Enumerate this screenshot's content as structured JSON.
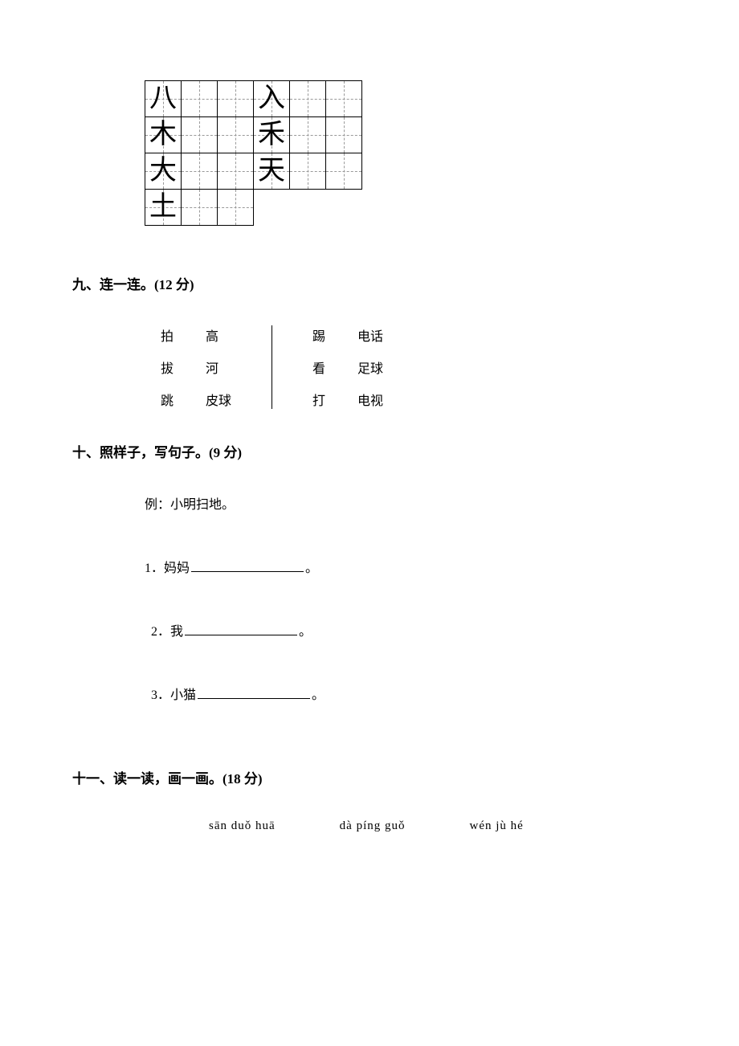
{
  "grid": {
    "rows": [
      [
        "八",
        "",
        "",
        "入",
        "",
        ""
      ],
      [
        "木",
        "",
        "",
        "禾",
        "",
        ""
      ],
      [
        "大",
        "",
        "",
        "天",
        "",
        ""
      ],
      [
        "土",
        "",
        ""
      ]
    ]
  },
  "section9": {
    "title": "九、连一连。(12 分)",
    "left": {
      "colA": [
        "拍",
        "拔",
        "跳"
      ],
      "colB": [
        "高",
        "河",
        "皮球"
      ]
    },
    "right": {
      "colA": [
        "踢",
        "看",
        "打"
      ],
      "colB": [
        "电话",
        "足球",
        "电视"
      ]
    }
  },
  "section10": {
    "title": "十、照样子，写句子。(9 分)",
    "example": "例：小明扫地。",
    "items": [
      {
        "num": "1．",
        "label": "妈妈",
        "tail": "。"
      },
      {
        "num": "2．",
        "label": "我",
        "tail": "。"
      },
      {
        "num": "3．",
        "label": "小猫",
        "tail": "。"
      }
    ]
  },
  "section11": {
    "title": "十一、读一读，画一画。(18 分)",
    "pinyin": [
      "sān duǒ huā",
      "dà píng guǒ",
      "wén jù hé"
    ]
  }
}
